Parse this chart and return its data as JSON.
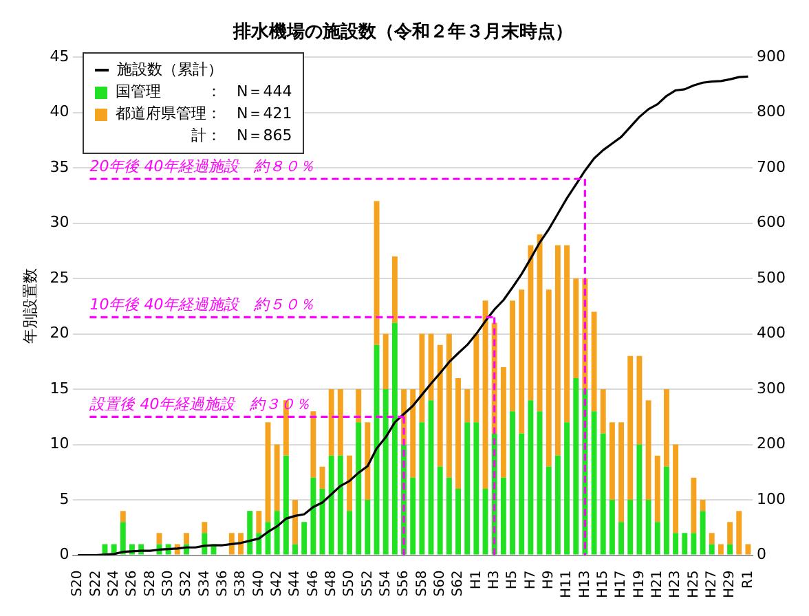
{
  "chart_data": {
    "type": "bar",
    "title": "排水機場の施設数（令和２年３月末時点）",
    "ylabel": "年別設置数",
    "categories": [
      "S20",
      null,
      "S22",
      null,
      "S24",
      null,
      "S26",
      null,
      "S28",
      null,
      "S30",
      null,
      "S32",
      null,
      "S34",
      null,
      "S36",
      null,
      "S38",
      null,
      "S40",
      null,
      "S42",
      null,
      "S44",
      null,
      "S46",
      null,
      "S48",
      null,
      "S50",
      null,
      "S52",
      null,
      "S54",
      null,
      "S56",
      null,
      "S58",
      null,
      "S60",
      null,
      "S62",
      null,
      "H1",
      null,
      "H3",
      null,
      "H5",
      null,
      "H7",
      null,
      "H9",
      null,
      "H11",
      null,
      "H13",
      null,
      "H15",
      null,
      "H17",
      null,
      "H19",
      null,
      "H21",
      null,
      "H23",
      null,
      "H25",
      null,
      "H27",
      null,
      "H29",
      null,
      "R1"
    ],
    "stacked": true,
    "series": [
      {
        "name": "施設数（累計）",
        "type": "line",
        "axis": "y2",
        "color": "#000000",
        "values": [
          0,
          0,
          0,
          1,
          2,
          6,
          7,
          8,
          8,
          10,
          11,
          12,
          14,
          14,
          17,
          18,
          18,
          20,
          22,
          26,
          30,
          42,
          52,
          66,
          71,
          74,
          87,
          95,
          110,
          125,
          134,
          149,
          161,
          193,
          213,
          240,
          255,
          270,
          290,
          310,
          329,
          349,
          365,
          380,
          400,
          423,
          444,
          461,
          484,
          508,
          536,
          565,
          589,
          617,
          645,
          670,
          695,
          717,
          732,
          744,
          756,
          774,
          792,
          806,
          815,
          830,
          840,
          842,
          849,
          854,
          856,
          857,
          860,
          864,
          865
        ]
      },
      {
        "name": "国管理　　　：　N＝444",
        "type": "bar",
        "color": "#22e022",
        "values": [
          0,
          0,
          0,
          1,
          1,
          3,
          1,
          1,
          0,
          1,
          1,
          0,
          1,
          0,
          2,
          1,
          0,
          0,
          0,
          4,
          2,
          3,
          4,
          9,
          1,
          3,
          7,
          6,
          9,
          9,
          4,
          12,
          5,
          19,
          15,
          21,
          10,
          7,
          12,
          14,
          8,
          7,
          6,
          12,
          12,
          6,
          11,
          7,
          13,
          11,
          14,
          13,
          8,
          9,
          12,
          16,
          15,
          13,
          11,
          5,
          3,
          5,
          10,
          5,
          3,
          8,
          2,
          2,
          2,
          4,
          1,
          0,
          1,
          0,
          0
        ]
      },
      {
        "name": "都道府県管理：　N＝421",
        "type": "bar",
        "color": "#f5a21e",
        "values": [
          0,
          0,
          0,
          0,
          0,
          1,
          0,
          0,
          0,
          1,
          0,
          1,
          1,
          0,
          1,
          0,
          0,
          2,
          2,
          0,
          2,
          9,
          6,
          5,
          4,
          0,
          6,
          2,
          6,
          6,
          5,
          3,
          7,
          13,
          5,
          6,
          5,
          8,
          8,
          6,
          11,
          13,
          10,
          3,
          8,
          17,
          10,
          10,
          10,
          13,
          14,
          16,
          16,
          19,
          16,
          9,
          10,
          9,
          4,
          7,
          9,
          13,
          8,
          9,
          6,
          7,
          8,
          0,
          5,
          1,
          1,
          1,
          2,
          4,
          1
        ]
      }
    ],
    "ylim": [
      0,
      45
    ],
    "yticks": [
      0,
      5,
      10,
      15,
      20,
      25,
      30,
      35,
      40,
      45
    ],
    "y2lim": [
      0,
      900
    ],
    "y2ticks": [
      0,
      100,
      200,
      300,
      400,
      500,
      600,
      700,
      800,
      900
    ],
    "grid": "y",
    "legend": "top left",
    "marker": "none",
    "line_style": "solid",
    "annotations": [
      "計：　N＝865"
    ],
    "ref_lines": [
      {
        "axis": "y",
        "value": 12.5,
        "label": "設置後 40年経過施設　約３０％",
        "color": "#ff00ff",
        "line_style": "dashed"
      },
      {
        "axis": "y",
        "value": 21.5,
        "label": "10年後 40年経過施設　約５０％",
        "color": "#ff00ff",
        "line_style": "dashed"
      },
      {
        "axis": "y",
        "value": 34,
        "label": "20年後 40年経過施設　約８０％",
        "color": "#ff00ff",
        "line_style": "dashed"
      },
      {
        "axis": "x",
        "value": "S56",
        "color": "#ff00ff",
        "line_style": "dashed"
      },
      {
        "axis": "x",
        "value": "H3",
        "color": "#ff00ff",
        "line_style": "dashed"
      },
      {
        "axis": "x",
        "value": "H13",
        "color": "#ff00ff",
        "line_style": "dashed"
      }
    ]
  }
}
